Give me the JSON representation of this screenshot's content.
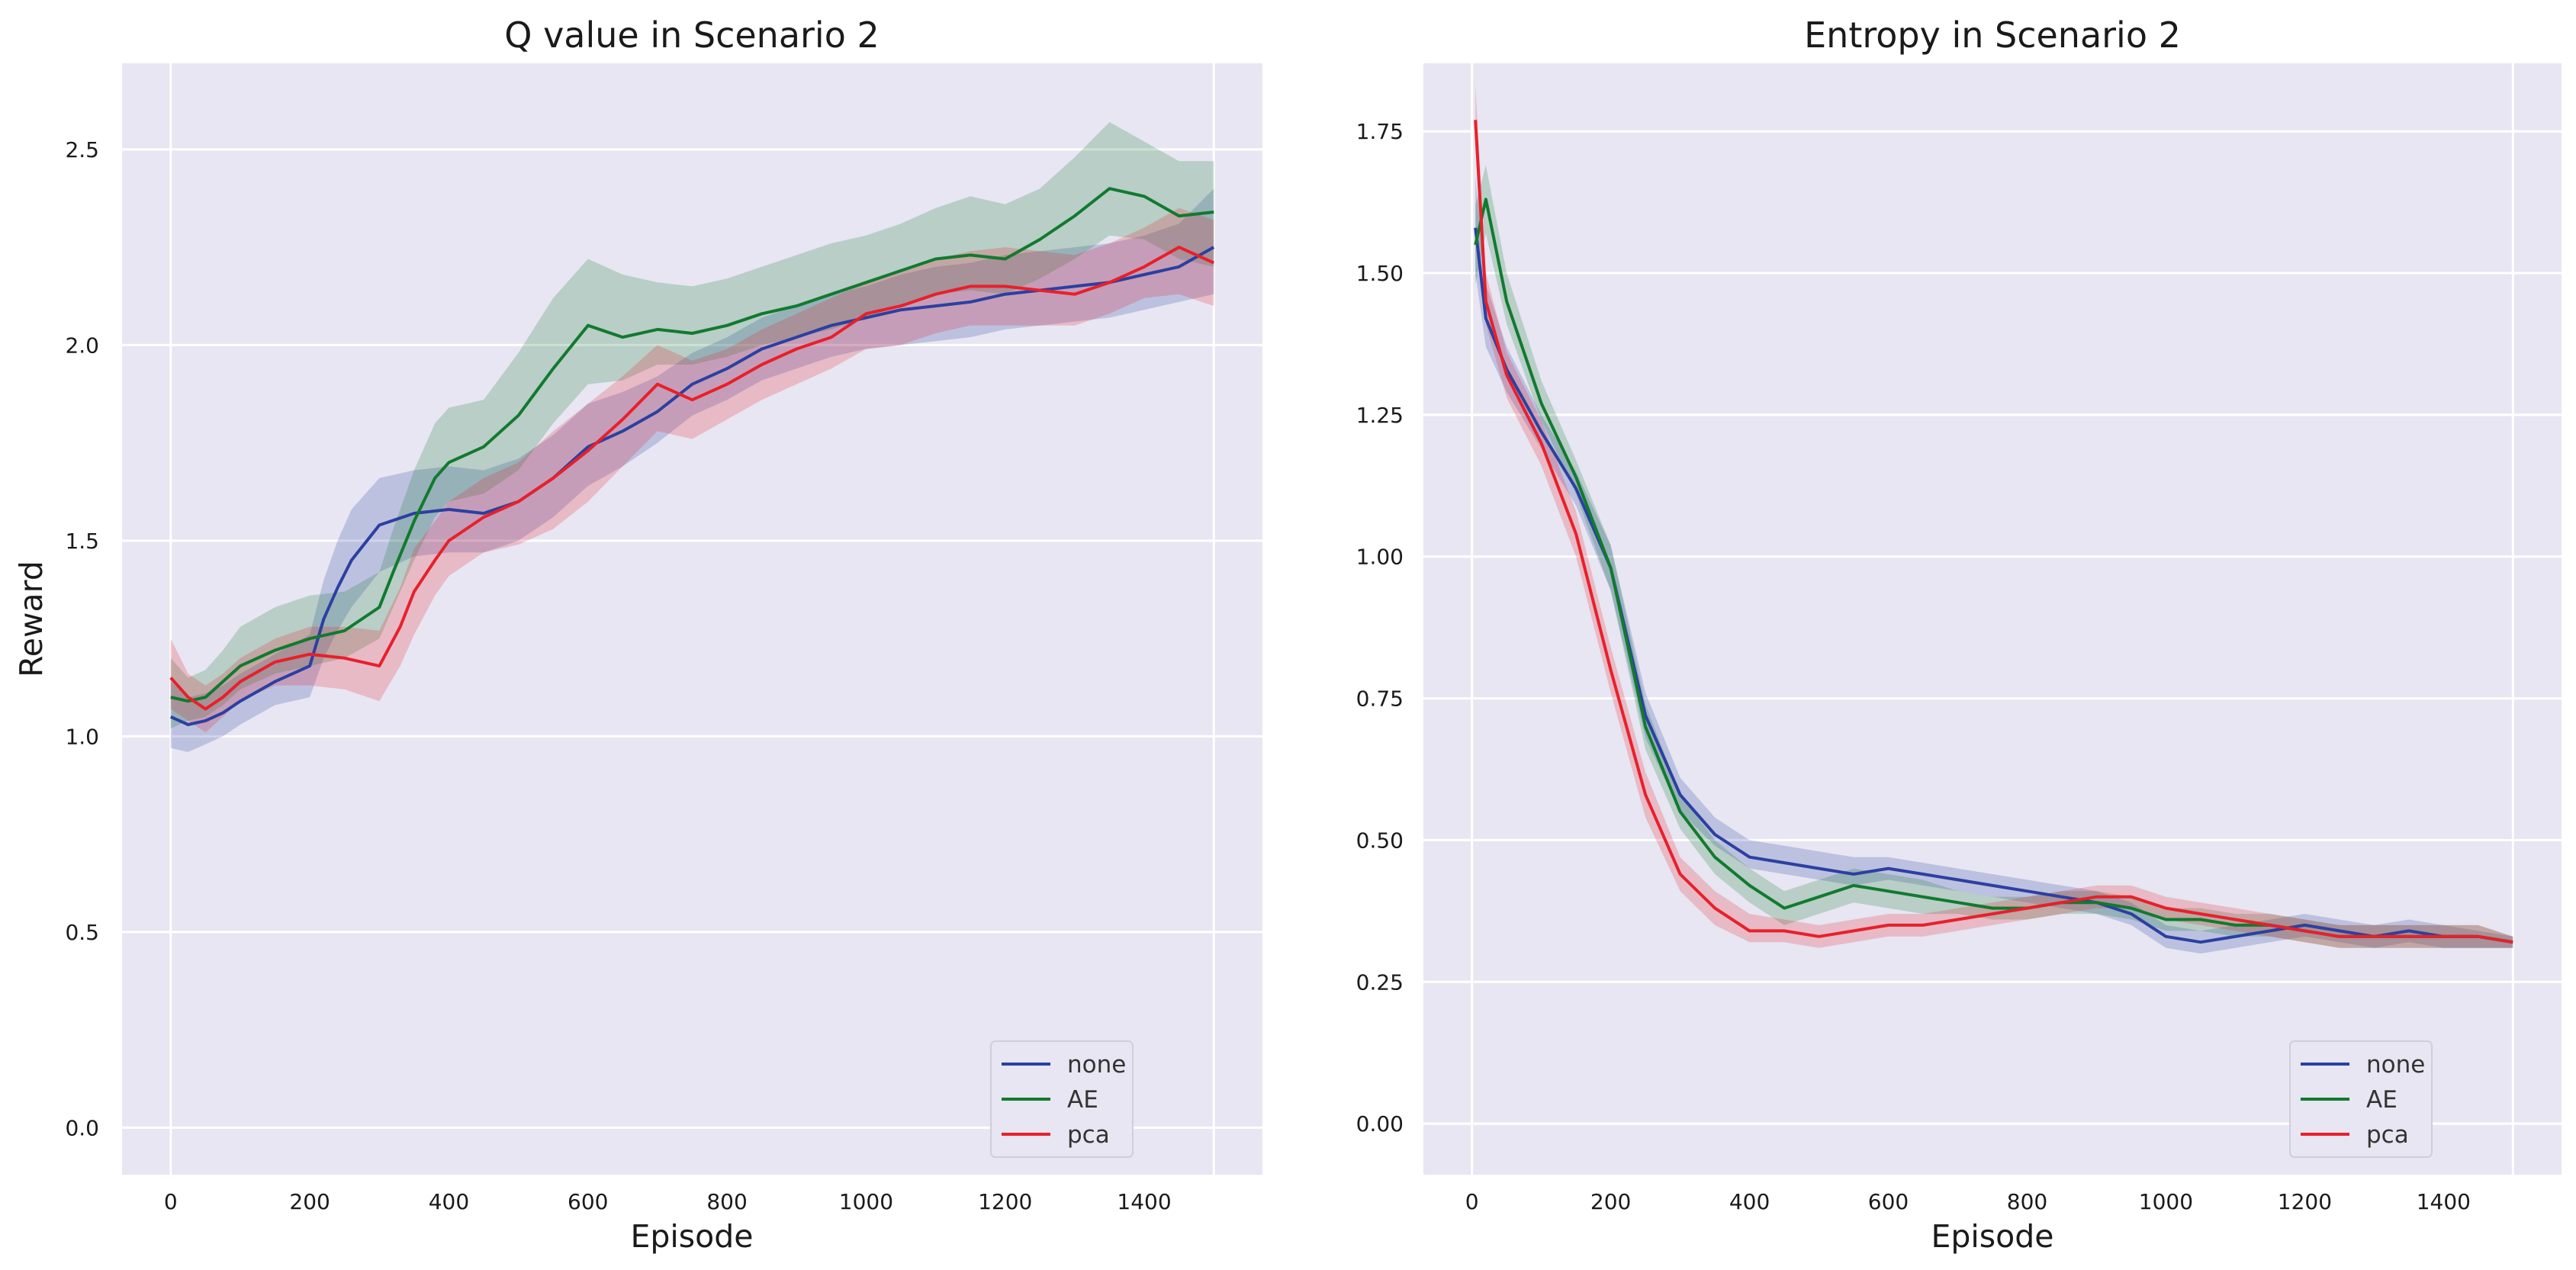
{
  "chart_data": [
    {
      "type": "line",
      "title": "Q value in Scenario 2",
      "xlabel": "Episode",
      "ylabel": "Reward",
      "xlim": [
        -70,
        1570
      ],
      "ylim": [
        -0.12,
        2.72
      ],
      "xticks": [
        0,
        200,
        400,
        600,
        800,
        1000,
        1200,
        1400
      ],
      "yticks": [
        0.0,
        0.5,
        1.0,
        1.5,
        2.0,
        2.5
      ],
      "xtick_labels": [
        "0",
        "200",
        "400",
        "600",
        "800",
        "1000",
        "1200",
        "1400"
      ],
      "ytick_labels": [
        "0.0",
        "0.5",
        "1.0",
        "1.5",
        "2.0",
        "2.5"
      ],
      "legend_position": "bottom-right",
      "series": [
        {
          "name": "none",
          "color": "#2b40a1",
          "x": [
            0,
            25,
            50,
            75,
            100,
            150,
            200,
            220,
            240,
            260,
            300,
            350,
            400,
            450,
            500,
            550,
            600,
            650,
            700,
            750,
            800,
            850,
            900,
            950,
            1000,
            1050,
            1100,
            1150,
            1200,
            1250,
            1300,
            1350,
            1400,
            1450,
            1500
          ],
          "values": [
            1.05,
            1.03,
            1.04,
            1.06,
            1.09,
            1.14,
            1.18,
            1.3,
            1.38,
            1.45,
            1.54,
            1.57,
            1.58,
            1.57,
            1.6,
            1.66,
            1.74,
            1.78,
            1.83,
            1.9,
            1.94,
            1.99,
            2.02,
            2.05,
            2.07,
            2.09,
            2.1,
            2.11,
            2.13,
            2.14,
            2.15,
            2.16,
            2.18,
            2.2,
            2.25
          ],
          "lower": [
            0.97,
            0.96,
            0.98,
            1.0,
            1.03,
            1.08,
            1.1,
            1.2,
            1.27,
            1.33,
            1.42,
            1.46,
            1.47,
            1.47,
            1.5,
            1.56,
            1.64,
            1.69,
            1.75,
            1.82,
            1.86,
            1.91,
            1.94,
            1.97,
            1.99,
            2.0,
            2.01,
            2.02,
            2.04,
            2.05,
            2.06,
            2.07,
            2.09,
            2.11,
            2.13
          ],
          "upper": [
            1.14,
            1.1,
            1.11,
            1.13,
            1.16,
            1.21,
            1.26,
            1.4,
            1.5,
            1.58,
            1.66,
            1.68,
            1.69,
            1.68,
            1.71,
            1.77,
            1.85,
            1.88,
            1.92,
            1.98,
            2.02,
            2.07,
            2.1,
            2.13,
            2.15,
            2.18,
            2.2,
            2.21,
            2.23,
            2.24,
            2.25,
            2.26,
            2.28,
            2.31,
            2.4
          ]
        },
        {
          "name": "AE",
          "color": "#117a2e",
          "x": [
            0,
            25,
            50,
            75,
            100,
            150,
            200,
            250,
            300,
            320,
            350,
            380,
            400,
            450,
            500,
            550,
            600,
            650,
            700,
            750,
            800,
            850,
            900,
            950,
            1000,
            1050,
            1100,
            1150,
            1200,
            1250,
            1300,
            1350,
            1400,
            1450,
            1500
          ],
          "values": [
            1.1,
            1.09,
            1.1,
            1.14,
            1.18,
            1.22,
            1.25,
            1.27,
            1.33,
            1.42,
            1.55,
            1.66,
            1.7,
            1.74,
            1.82,
            1.94,
            2.05,
            2.02,
            2.04,
            2.03,
            2.05,
            2.08,
            2.1,
            2.13,
            2.16,
            2.19,
            2.22,
            2.23,
            2.22,
            2.27,
            2.33,
            2.4,
            2.38,
            2.33,
            2.34
          ],
          "lower": [
            1.02,
            1.04,
            1.05,
            1.08,
            1.12,
            1.16,
            1.18,
            1.2,
            1.25,
            1.33,
            1.45,
            1.56,
            1.6,
            1.62,
            1.68,
            1.8,
            1.9,
            1.91,
            1.95,
            1.95,
            1.97,
            2.0,
            2.02,
            2.04,
            2.07,
            2.1,
            2.13,
            2.14,
            2.13,
            2.17,
            2.22,
            2.28,
            2.27,
            2.22,
            2.2
          ],
          "upper": [
            1.2,
            1.15,
            1.17,
            1.22,
            1.28,
            1.33,
            1.36,
            1.37,
            1.42,
            1.53,
            1.68,
            1.8,
            1.84,
            1.86,
            1.98,
            2.12,
            2.22,
            2.18,
            2.16,
            2.15,
            2.17,
            2.2,
            2.23,
            2.26,
            2.28,
            2.31,
            2.35,
            2.38,
            2.36,
            2.4,
            2.48,
            2.57,
            2.52,
            2.47,
            2.47
          ]
        },
        {
          "name": "pca",
          "color": "#e8202a",
          "x": [
            0,
            25,
            50,
            75,
            100,
            150,
            200,
            250,
            300,
            330,
            350,
            380,
            400,
            450,
            500,
            550,
            600,
            650,
            700,
            750,
            800,
            850,
            900,
            950,
            1000,
            1050,
            1100,
            1150,
            1200,
            1250,
            1300,
            1350,
            1400,
            1450,
            1500
          ],
          "values": [
            1.15,
            1.1,
            1.07,
            1.1,
            1.14,
            1.19,
            1.21,
            1.2,
            1.18,
            1.28,
            1.37,
            1.45,
            1.5,
            1.56,
            1.6,
            1.66,
            1.73,
            1.81,
            1.9,
            1.86,
            1.9,
            1.95,
            1.99,
            2.02,
            2.08,
            2.1,
            2.13,
            2.15,
            2.15,
            2.14,
            2.13,
            2.16,
            2.2,
            2.25,
            2.21
          ],
          "lower": [
            1.07,
            1.04,
            1.01,
            1.05,
            1.09,
            1.13,
            1.13,
            1.12,
            1.09,
            1.18,
            1.26,
            1.36,
            1.41,
            1.47,
            1.49,
            1.53,
            1.6,
            1.69,
            1.78,
            1.76,
            1.81,
            1.86,
            1.9,
            1.94,
            1.99,
            2.0,
            2.03,
            2.05,
            2.05,
            2.05,
            2.05,
            2.08,
            2.12,
            2.13,
            2.1
          ],
          "upper": [
            1.25,
            1.16,
            1.13,
            1.16,
            1.2,
            1.25,
            1.28,
            1.28,
            1.27,
            1.38,
            1.48,
            1.55,
            1.6,
            1.66,
            1.7,
            1.78,
            1.85,
            1.92,
            2.0,
            1.96,
            1.99,
            2.04,
            2.08,
            2.12,
            2.16,
            2.19,
            2.22,
            2.24,
            2.25,
            2.24,
            2.23,
            2.26,
            2.3,
            2.35,
            2.32
          ]
        }
      ]
    },
    {
      "type": "line",
      "title": "Entropy in Scenario 2",
      "xlabel": "Episode",
      "ylabel": "",
      "xlim": [
        -70,
        1570
      ],
      "ylim": [
        -0.09,
        1.87
      ],
      "xticks": [
        0,
        200,
        400,
        600,
        800,
        1000,
        1200,
        1400
      ],
      "yticks": [
        0.0,
        0.25,
        0.5,
        0.75,
        1.0,
        1.25,
        1.5,
        1.75
      ],
      "xtick_labels": [
        "0",
        "200",
        "400",
        "600",
        "800",
        "1000",
        "1200",
        "1400"
      ],
      "ytick_labels": [
        "0.00",
        "0.25",
        "0.50",
        "0.75",
        "1.00",
        "1.25",
        "1.50",
        "1.75"
      ],
      "legend_position": "bottom-right",
      "series": [
        {
          "name": "none",
          "color": "#2b40a1",
          "x": [
            5,
            20,
            50,
            100,
            150,
            200,
            250,
            300,
            350,
            400,
            450,
            500,
            550,
            600,
            650,
            700,
            750,
            800,
            850,
            900,
            950,
            1000,
            1050,
            1100,
            1150,
            1200,
            1250,
            1300,
            1350,
            1400,
            1450,
            1500
          ],
          "values": [
            1.58,
            1.42,
            1.33,
            1.22,
            1.12,
            0.98,
            0.72,
            0.58,
            0.51,
            0.47,
            0.46,
            0.45,
            0.44,
            0.45,
            0.44,
            0.43,
            0.42,
            0.41,
            0.4,
            0.39,
            0.37,
            0.33,
            0.32,
            0.33,
            0.34,
            0.35,
            0.34,
            0.33,
            0.34,
            0.33,
            0.33,
            0.32
          ],
          "lower": [
            1.5,
            1.37,
            1.29,
            1.19,
            1.09,
            0.94,
            0.68,
            0.55,
            0.49,
            0.45,
            0.44,
            0.43,
            0.42,
            0.43,
            0.42,
            0.41,
            0.4,
            0.39,
            0.38,
            0.37,
            0.35,
            0.31,
            0.3,
            0.31,
            0.32,
            0.33,
            0.32,
            0.31,
            0.32,
            0.31,
            0.31,
            0.31
          ],
          "upper": [
            1.67,
            1.48,
            1.37,
            1.25,
            1.15,
            1.02,
            0.76,
            0.61,
            0.54,
            0.5,
            0.49,
            0.48,
            0.47,
            0.47,
            0.46,
            0.45,
            0.44,
            0.43,
            0.42,
            0.41,
            0.39,
            0.35,
            0.34,
            0.35,
            0.36,
            0.37,
            0.36,
            0.35,
            0.36,
            0.35,
            0.34,
            0.33
          ]
        },
        {
          "name": "AE",
          "color": "#117a2e",
          "x": [
            5,
            20,
            50,
            100,
            150,
            200,
            250,
            300,
            350,
            400,
            450,
            500,
            550,
            600,
            650,
            700,
            750,
            800,
            850,
            900,
            950,
            1000,
            1050,
            1100,
            1150,
            1200,
            1250,
            1300,
            1350,
            1400,
            1450,
            1500
          ],
          "values": [
            1.55,
            1.63,
            1.45,
            1.27,
            1.14,
            0.98,
            0.7,
            0.55,
            0.47,
            0.42,
            0.38,
            0.4,
            0.42,
            0.41,
            0.4,
            0.39,
            0.38,
            0.38,
            0.39,
            0.39,
            0.38,
            0.36,
            0.36,
            0.35,
            0.35,
            0.34,
            0.33,
            0.33,
            0.33,
            0.33,
            0.33,
            0.32
          ],
          "lower": [
            1.48,
            1.57,
            1.41,
            1.24,
            1.11,
            0.94,
            0.66,
            0.52,
            0.44,
            0.39,
            0.35,
            0.37,
            0.39,
            0.38,
            0.37,
            0.37,
            0.36,
            0.36,
            0.37,
            0.37,
            0.36,
            0.34,
            0.34,
            0.33,
            0.33,
            0.32,
            0.31,
            0.31,
            0.31,
            0.31,
            0.31,
            0.31
          ],
          "upper": [
            1.62,
            1.69,
            1.5,
            1.31,
            1.17,
            1.02,
            0.74,
            0.58,
            0.5,
            0.45,
            0.41,
            0.43,
            0.45,
            0.44,
            0.43,
            0.41,
            0.4,
            0.4,
            0.41,
            0.41,
            0.4,
            0.38,
            0.38,
            0.37,
            0.37,
            0.36,
            0.35,
            0.35,
            0.35,
            0.35,
            0.35,
            0.33
          ]
        },
        {
          "name": "pca",
          "color": "#e8202a",
          "x": [
            5,
            20,
            50,
            100,
            150,
            200,
            250,
            300,
            350,
            400,
            450,
            500,
            550,
            600,
            650,
            700,
            750,
            800,
            850,
            900,
            950,
            1000,
            1050,
            1100,
            1150,
            1200,
            1250,
            1300,
            1350,
            1400,
            1450,
            1500
          ],
          "values": [
            1.77,
            1.45,
            1.32,
            1.2,
            1.04,
            0.8,
            0.58,
            0.44,
            0.38,
            0.34,
            0.34,
            0.33,
            0.34,
            0.35,
            0.35,
            0.36,
            0.37,
            0.38,
            0.39,
            0.4,
            0.4,
            0.38,
            0.37,
            0.36,
            0.35,
            0.34,
            0.33,
            0.33,
            0.33,
            0.33,
            0.33,
            0.32
          ],
          "lower": [
            1.72,
            1.41,
            1.28,
            1.16,
            1.0,
            0.76,
            0.54,
            0.41,
            0.35,
            0.32,
            0.32,
            0.31,
            0.32,
            0.33,
            0.33,
            0.34,
            0.35,
            0.36,
            0.37,
            0.38,
            0.38,
            0.36,
            0.35,
            0.34,
            0.33,
            0.32,
            0.31,
            0.31,
            0.31,
            0.31,
            0.31,
            0.31
          ],
          "upper": [
            1.83,
            1.5,
            1.36,
            1.24,
            1.08,
            0.84,
            0.62,
            0.47,
            0.41,
            0.37,
            0.36,
            0.35,
            0.36,
            0.37,
            0.37,
            0.38,
            0.39,
            0.4,
            0.41,
            0.42,
            0.42,
            0.4,
            0.39,
            0.38,
            0.37,
            0.36,
            0.35,
            0.35,
            0.35,
            0.35,
            0.35,
            0.33
          ]
        }
      ]
    }
  ]
}
